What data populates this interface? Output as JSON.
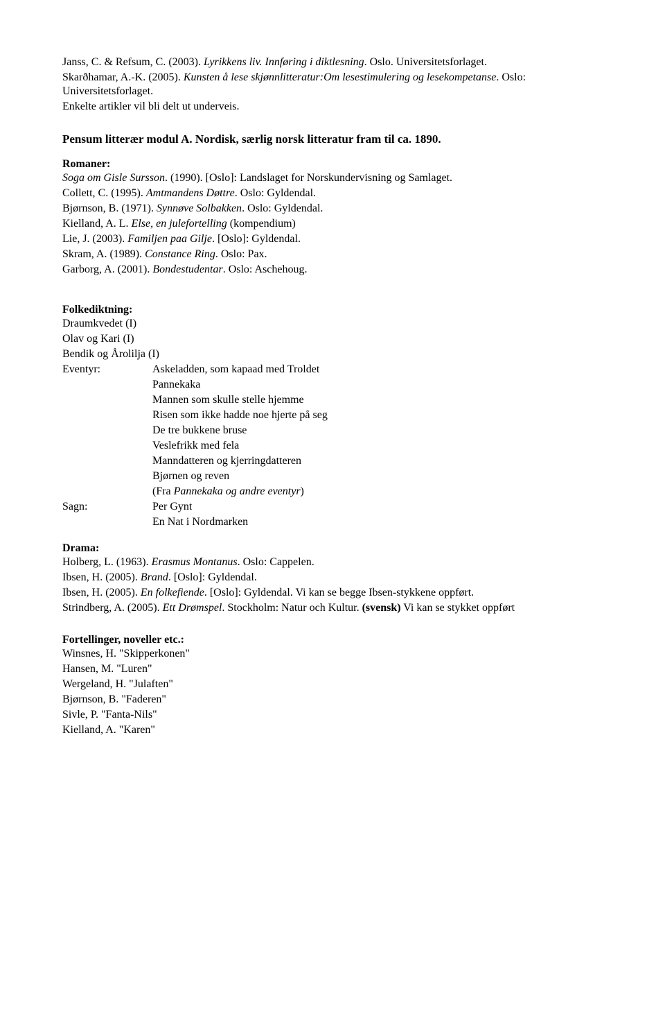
{
  "block1": [
    {
      "runs": [
        {
          "t": "Janss, C. & Refsum, C. (2003). "
        },
        {
          "t": "Lyrikkens liv. Innføring i diktlesning",
          "i": true
        },
        {
          "t": ". Oslo. Universitetsforlaget."
        }
      ]
    },
    {
      "runs": [
        {
          "t": "Skarðhamar, A.-K. (2005). "
        },
        {
          "t": "Kunsten å lese skjønnlitteratur:Om lesestimulering og lesekompetanse",
          "i": true
        },
        {
          "t": ". Oslo: Universitetsforlaget."
        }
      ]
    },
    {
      "runs": [
        {
          "t": "Enkelte artikler vil bli delt ut underveis."
        }
      ]
    }
  ],
  "heading": "Pensum litterær modul A. Nordisk, særlig norsk litteratur fram til ca. 1890.",
  "romaner_label": "Romaner:",
  "romaner": [
    {
      "runs": [
        {
          "t": "Soga om Gisle Sursson",
          "i": true
        },
        {
          "t": ". (1990). [Oslo]: Landslaget for Norskundervisning og Samlaget."
        }
      ]
    },
    {
      "runs": [
        {
          "t": "Collett, C. (1995). "
        },
        {
          "t": "Amtmandens Døttre",
          "i": true
        },
        {
          "t": ". Oslo: Gyldendal."
        }
      ]
    },
    {
      "runs": [
        {
          "t": "Bjørnson, B. (1971). "
        },
        {
          "t": "Synnøve Solbakken",
          "i": true
        },
        {
          "t": ". Oslo: Gyldendal."
        }
      ]
    },
    {
      "runs": [
        {
          "t": "Kielland, A. L. "
        },
        {
          "t": "Else, en julefortelling",
          "i": true
        },
        {
          "t": " (kompendium)"
        }
      ]
    },
    {
      "runs": [
        {
          "t": "Lie, J. (2003). "
        },
        {
          "t": "Familjen paa Gilje",
          "i": true
        },
        {
          "t": ". [Oslo]: Gyldendal."
        }
      ]
    },
    {
      "runs": [
        {
          "t": "Skram, A. (1989). "
        },
        {
          "t": "Constance Ring",
          "i": true
        },
        {
          "t": ". Oslo: Pax."
        }
      ]
    },
    {
      "runs": [
        {
          "t": "Garborg, A. (2001). "
        },
        {
          "t": "Bondestudentar",
          "i": true
        },
        {
          "t": ". Oslo: Aschehoug."
        }
      ]
    }
  ],
  "folke_label": "Folkediktning:",
  "folke_lines": [
    "Draumkvedet (I)",
    "Olav og Kari (I)",
    "Bendik og Årolilja (I)"
  ],
  "eventyr_label": "Eventyr:",
  "eventyr_items": [
    {
      "runs": [
        {
          "t": "Askeladden, som kapaad med Troldet"
        }
      ]
    },
    {
      "runs": [
        {
          "t": "Pannekaka"
        }
      ]
    },
    {
      "runs": [
        {
          "t": "Mannen som skulle stelle hjemme"
        }
      ]
    },
    {
      "runs": [
        {
          "t": "Risen som ikke hadde noe hjerte på seg"
        }
      ]
    },
    {
      "runs": [
        {
          "t": "De tre bukkene bruse"
        }
      ]
    },
    {
      "runs": [
        {
          "t": "Veslefrikk med fela"
        }
      ]
    },
    {
      "runs": [
        {
          "t": "Manndatteren og kjerringdatteren"
        }
      ]
    },
    {
      "runs": [
        {
          "t": "Bjørnen og reven"
        }
      ]
    },
    {
      "runs": [
        {
          "t": "(Fra "
        },
        {
          "t": "Pannekaka og andre eventyr",
          "i": true
        },
        {
          "t": ")"
        }
      ]
    }
  ],
  "sagn_label": "Sagn:",
  "sagn_items": [
    {
      "runs": [
        {
          "t": "Per Gynt"
        }
      ]
    },
    {
      "runs": [
        {
          "t": "En Nat i Nordmarken"
        }
      ]
    }
  ],
  "drama_label": "Drama:",
  "drama": [
    {
      "runs": [
        {
          "t": "Holberg, L. (1963). "
        },
        {
          "t": "Erasmus Montanus",
          "i": true
        },
        {
          "t": ". Oslo: Cappelen."
        }
      ]
    },
    {
      "runs": [
        {
          "t": "Ibsen, H. (2005). "
        },
        {
          "t": "Brand",
          "i": true
        },
        {
          "t": ". [Oslo]: Gyldendal."
        }
      ]
    },
    {
      "runs": [
        {
          "t": "Ibsen, H. (2005). "
        },
        {
          "t": "En folkefiende",
          "i": true
        },
        {
          "t": ". [Oslo]: Gyldendal. Vi kan se begge Ibsen-stykkene oppført."
        }
      ]
    },
    {
      "runs": [
        {
          "t": "Strindberg, A. (2005). "
        },
        {
          "t": "Ett Drømspel",
          "i": true
        },
        {
          "t": ". Stockholm: Natur och Kultur. "
        },
        {
          "t": "(svensk)",
          "b": true
        },
        {
          "t": " Vi kan se stykket oppført"
        }
      ]
    }
  ],
  "fort_label": "Fortellinger, noveller etc.:",
  "fort": [
    "Winsnes, H. \"Skipperkonen\"",
    "Hansen, M. \"Luren\"",
    "Wergeland, H. \"Julaften\"",
    "Bjørnson, B. \"Faderen\"",
    "Sivle, P. \"Fanta-Nils\"",
    "Kielland, A. \"Karen\""
  ]
}
